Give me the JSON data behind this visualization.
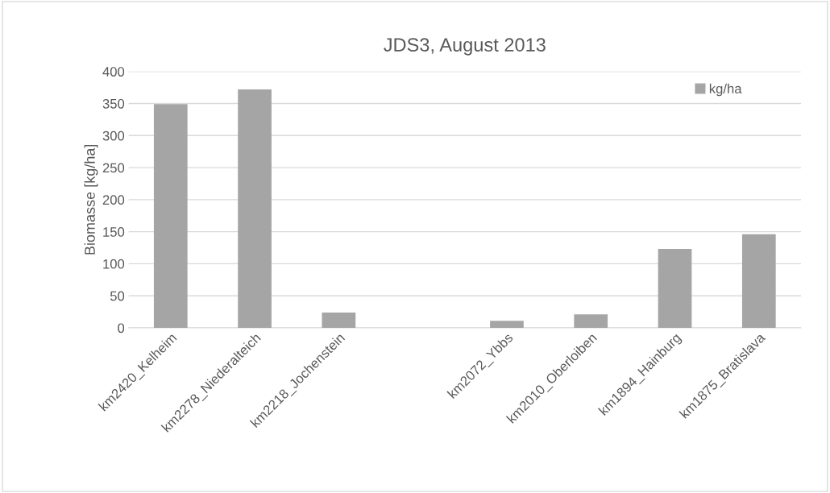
{
  "chart_data": {
    "type": "bar",
    "title": "JDS3, August 2013",
    "ylabel": "Biomasse [kg/ha]",
    "categories": [
      "km2420_Kelheim",
      "km2278_Niederalteich",
      "km2218_Jochenstein",
      null,
      "km2072_Ybbs",
      "km2010_Oberloiben",
      "km1894_Hainburg",
      "km1875_Bratislava"
    ],
    "series": [
      {
        "name": "kg/ha",
        "color": "#a5a5a5",
        "values": [
          349,
          372,
          24,
          null,
          11,
          21,
          123,
          146
        ]
      }
    ],
    "ylim": [
      0,
      400
    ],
    "yticks": [
      0,
      50,
      100,
      150,
      200,
      250,
      300,
      350,
      400
    ],
    "grid": "y",
    "legend": "top right"
  }
}
